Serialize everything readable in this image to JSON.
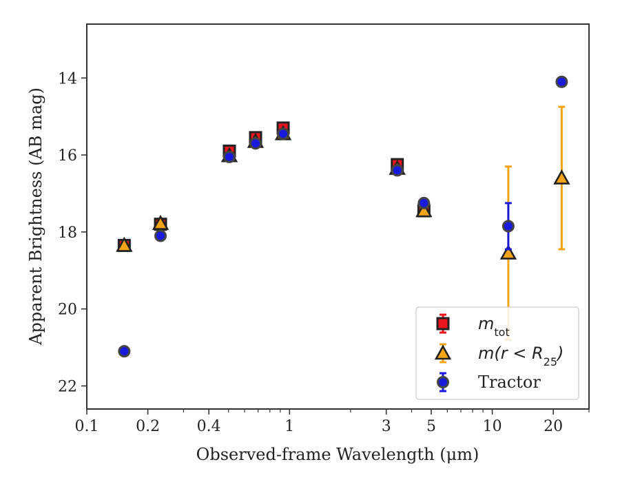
{
  "chart_data": {
    "type": "scatter",
    "title": "",
    "xlabel": "Observed-frame Wavelength (μm)",
    "ylabel": "Apparent Brightness (AB mag)",
    "xscale": "log",
    "xlim": [
      0.1,
      30
    ],
    "ylim": [
      22.6,
      12.6
    ],
    "y_inverted": true,
    "grid": false,
    "legend_position": "lower-right",
    "x_ticks": [
      {
        "value": 0.1,
        "label": "0.1"
      },
      {
        "value": 0.2,
        "label": "0.2"
      },
      {
        "value": 0.4,
        "label": "0.4"
      },
      {
        "value": 1,
        "label": "1"
      },
      {
        "value": 3,
        "label": "3"
      },
      {
        "value": 5,
        "label": "5"
      },
      {
        "value": 10,
        "label": "10"
      },
      {
        "value": 20,
        "label": "20"
      }
    ],
    "y_ticks": [
      {
        "value": 14,
        "label": "14"
      },
      {
        "value": 16,
        "label": "16"
      },
      {
        "value": 18,
        "label": "18"
      },
      {
        "value": 20,
        "label": "20"
      },
      {
        "value": 22,
        "label": "22"
      }
    ],
    "series": [
      {
        "key": "mtot",
        "legend_base": "m",
        "legend_sub": "tot",
        "legend_tail": "",
        "marker": "square",
        "color": "#e8141e",
        "edge_color": "#222222",
        "error_color": "#e8141e",
        "points": [
          {
            "x": 0.153,
            "y": 18.35,
            "err": 0.05
          },
          {
            "x": 0.231,
            "y": 17.8,
            "err": 0.05
          },
          {
            "x": 0.505,
            "y": 15.9,
            "err": 0.05
          },
          {
            "x": 0.68,
            "y": 15.55,
            "err": 0.05
          },
          {
            "x": 0.93,
            "y": 15.3,
            "err": 0.08
          },
          {
            "x": 3.4,
            "y": 16.25,
            "err": 0.05
          },
          {
            "x": 4.6,
            "y": 17.45,
            "err": 0.05
          }
        ]
      },
      {
        "key": "mr25",
        "legend_base": "m(r < R",
        "legend_sub": "25",
        "legend_tail": ")",
        "marker": "triangle",
        "color": "#f5a41a",
        "edge_color": "#222222",
        "error_color": "#f5a41a",
        "points": [
          {
            "x": 0.153,
            "y": 18.35,
            "err": 0.04
          },
          {
            "x": 0.231,
            "y": 17.78,
            "err": 0.04
          },
          {
            "x": 0.505,
            "y": 16.02,
            "err": 0.04
          },
          {
            "x": 0.68,
            "y": 15.65,
            "err": 0.04
          },
          {
            "x": 0.93,
            "y": 15.45,
            "err": 0.04
          },
          {
            "x": 3.4,
            "y": 16.35,
            "err": 0.04
          },
          {
            "x": 4.6,
            "y": 17.45,
            "err": 0.04
          },
          {
            "x": 12.0,
            "y": 18.55,
            "err": 2.25
          },
          {
            "x": 22.0,
            "y": 16.6,
            "err": 1.85
          }
        ]
      },
      {
        "key": "tractor",
        "legend_base": "Tractor",
        "legend_sub": "",
        "legend_tail": "",
        "marker": "circle",
        "color": "#1a1adc",
        "edge_color": "#444444",
        "error_color": "#1a1adc",
        "points": [
          {
            "x": 0.153,
            "y": 21.1,
            "err": 0.06
          },
          {
            "x": 0.231,
            "y": 18.1,
            "err": 0.06
          },
          {
            "x": 0.505,
            "y": 16.05,
            "err": 0.04
          },
          {
            "x": 0.68,
            "y": 15.7,
            "err": 0.04
          },
          {
            "x": 0.93,
            "y": 15.45,
            "err": 0.04
          },
          {
            "x": 3.4,
            "y": 16.4,
            "err": 0.04
          },
          {
            "x": 4.6,
            "y": 17.25,
            "err": 0.04
          },
          {
            "x": 12.0,
            "y": 17.85,
            "err": 0.6
          },
          {
            "x": 22.0,
            "y": 14.1,
            "err": 0.05
          }
        ]
      }
    ]
  }
}
